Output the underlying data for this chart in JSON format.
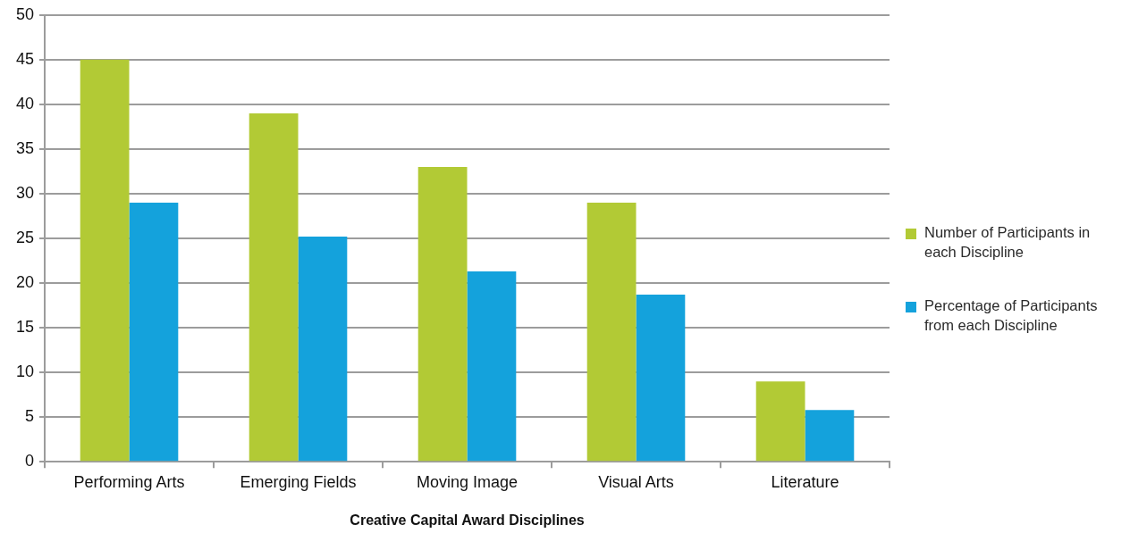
{
  "chart_data": {
    "type": "bar",
    "xlabel": "Creative Capital Award Disciplines",
    "categories": [
      "Performing Arts",
      "Emerging Fields",
      "Moving Image",
      "Visual Arts",
      "Literature"
    ],
    "series": [
      {
        "name": "Number of Participants in each Discipline",
        "color": "#b2ca35",
        "values": [
          45,
          39,
          33,
          29,
          9
        ]
      },
      {
        "name": "Percentage of Participants from each Discipline",
        "color": "#14a2dc",
        "values": [
          29,
          25.2,
          21.3,
          18.7,
          5.8
        ]
      }
    ],
    "ylim": [
      0,
      50
    ],
    "yticks": [
      0,
      5,
      10,
      15,
      20,
      25,
      30,
      35,
      40,
      45,
      50
    ],
    "grid": "y",
    "legend": "right"
  }
}
